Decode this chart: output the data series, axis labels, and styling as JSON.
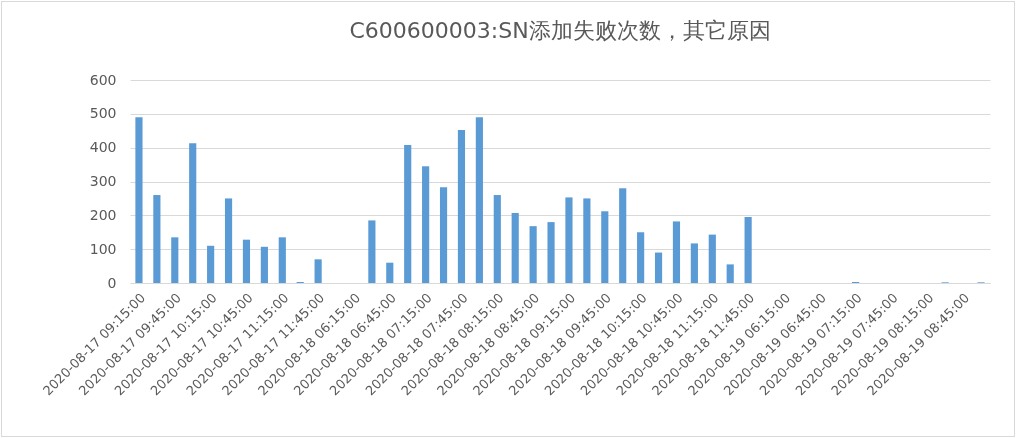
{
  "chart_data": {
    "type": "bar",
    "title": "C600600003:SN添加失败次数，其它原因",
    "categories": [
      "2020-08-17 09:15:00",
      null,
      "2020-08-17 09:45:00",
      null,
      "2020-08-17 10:15:00",
      null,
      "2020-08-17 10:45:00",
      null,
      "2020-08-17 11:15:00",
      null,
      "2020-08-17 11:45:00",
      null,
      "2020-08-18 06:15:00",
      null,
      "2020-08-18 06:45:00",
      null,
      "2020-08-18 07:15:00",
      null,
      "2020-08-18 07:45:00",
      null,
      "2020-08-18 08:15:00",
      null,
      "2020-08-18 08:45:00",
      null,
      "2020-08-18 09:15:00",
      null,
      "2020-08-18 09:45:00",
      null,
      "2020-08-18 10:15:00",
      null,
      "2020-08-18 10:45:00",
      null,
      "2020-08-18 11:15:00",
      null,
      "2020-08-18 11:45:00",
      null,
      "2020-08-19 06:15:00",
      null,
      "2020-08-19 06:45:00",
      null,
      "2020-08-19 07:15:00",
      null,
      "2020-08-19 07:45:00",
      null,
      "2020-08-19 08:15:00",
      null,
      "2020-08-19 08:45:00",
      null
    ],
    "values": [
      490,
      260,
      135,
      413,
      110,
      250,
      128,
      107,
      135,
      3,
      70,
      0,
      0,
      185,
      60,
      408,
      345,
      283,
      452,
      490,
      260,
      207,
      168,
      180,
      253,
      250,
      212,
      280,
      150,
      90,
      182,
      117,
      143,
      55,
      195,
      0,
      0,
      0,
      0,
      0,
      3,
      0,
      0,
      0,
      0,
      2,
      0,
      2
    ],
    "color": "#5b9bd5",
    "ylim": [
      0,
      600
    ],
    "yticks": [
      0,
      100,
      200,
      300,
      400,
      500,
      600
    ],
    "grid": "y"
  }
}
